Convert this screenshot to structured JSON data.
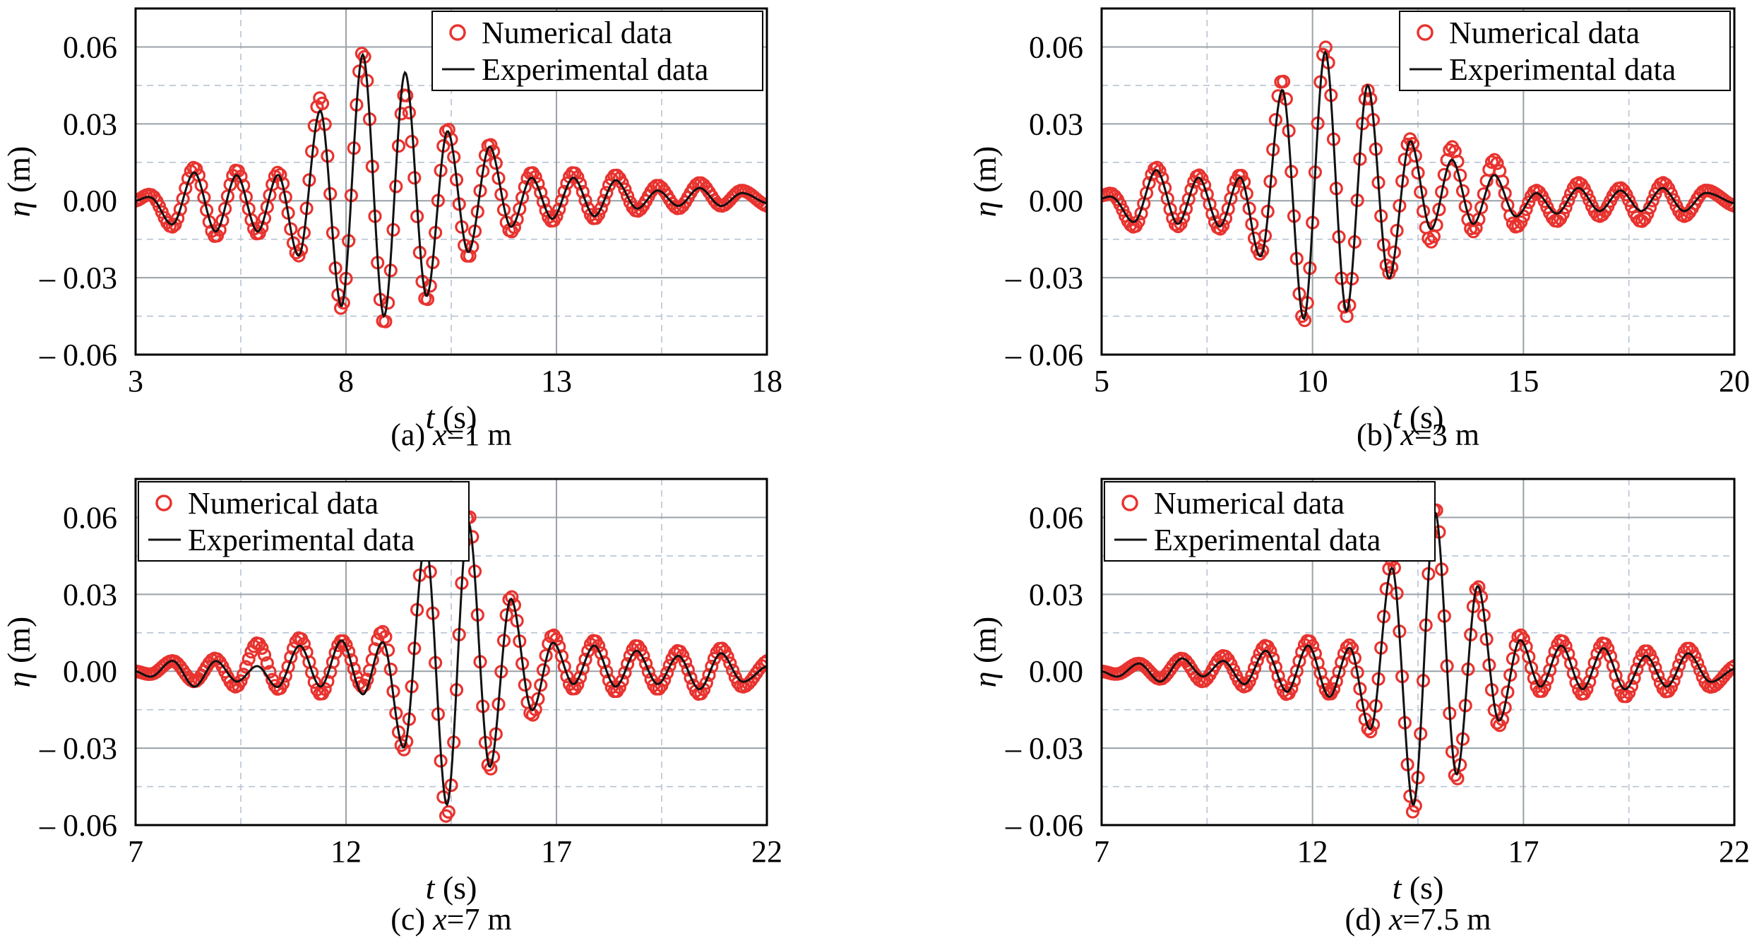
{
  "colors": {
    "numerical": "#e8332f",
    "experimental": "#111111",
    "grid_major": "#9aa2a8",
    "grid_minor": "#b7c3d3"
  },
  "chart_data": [
    {
      "type": "line",
      "caption_prefix": "(a) ",
      "caption_var": "x",
      "caption_value": "=1 m",
      "xlabel_var": "t",
      "xlabel_unit": " (s)",
      "ylabel_var": "η",
      "ylabel_unit": " (m)",
      "xlim": [
        3,
        18
      ],
      "ylim": [
        -0.06,
        0.075
      ],
      "x_ticks": [
        "3",
        "8",
        "13",
        "18"
      ],
      "x_tick_values": [
        3,
        8,
        13,
        18
      ],
      "y_ticks": [
        "0.06",
        "0.03",
        "0.00",
        "– 0.03",
        "– 0.06"
      ],
      "y_tick_values": [
        0.06,
        0.03,
        0.0,
        -0.03,
        -0.06
      ],
      "grid": true,
      "legend_position": "top-right",
      "series": [
        {
          "name": "Numerical data",
          "style": "markers",
          "t": [
            3.0,
            3.4,
            3.9,
            4.4,
            4.9,
            5.4,
            5.9,
            6.4,
            6.9,
            7.4,
            7.9,
            8.4,
            8.9,
            9.4,
            9.9,
            10.4,
            10.9,
            11.4,
            11.9,
            12.4,
            12.9,
            13.4,
            13.9,
            14.4,
            14.9,
            15.4,
            15.9,
            16.4,
            16.9,
            17.4,
            18.0
          ],
          "eta": [
            0.0,
            0.002,
            -0.01,
            0.013,
            -0.014,
            0.012,
            -0.013,
            0.011,
            -0.021,
            0.04,
            -0.042,
            0.058,
            -0.048,
            0.042,
            -0.039,
            0.028,
            -0.022,
            0.022,
            -0.012,
            0.011,
            -0.008,
            0.011,
            -0.007,
            0.01,
            -0.004,
            0.006,
            -0.003,
            0.007,
            -0.002,
            0.004,
            -0.002
          ]
        },
        {
          "name": "Experimental data",
          "style": "line",
          "t": [
            3.0,
            3.4,
            3.9,
            4.4,
            4.9,
            5.4,
            5.9,
            6.4,
            6.9,
            7.4,
            7.9,
            8.4,
            8.9,
            9.4,
            9.9,
            10.4,
            10.9,
            11.4,
            11.9,
            12.4,
            12.9,
            13.4,
            13.9,
            14.4,
            14.9,
            15.4,
            15.9,
            16.4,
            16.9,
            17.4,
            18.0
          ],
          "eta": [
            0.0,
            0.001,
            -0.009,
            0.011,
            -0.012,
            0.01,
            -0.012,
            0.01,
            -0.021,
            0.035,
            -0.041,
            0.057,
            -0.045,
            0.05,
            -0.037,
            0.027,
            -0.02,
            0.021,
            -0.01,
            0.009,
            -0.007,
            0.009,
            -0.006,
            0.008,
            -0.003,
            0.004,
            -0.002,
            0.005,
            -0.002,
            0.003,
            -0.001
          ]
        }
      ]
    },
    {
      "type": "line",
      "caption_prefix": "(b) ",
      "caption_var": "x",
      "caption_value": "=3 m",
      "xlabel_var": "t",
      "xlabel_unit": " (s)",
      "ylabel_var": "η",
      "ylabel_unit": " (m)",
      "xlim": [
        5,
        20
      ],
      "ylim": [
        -0.06,
        0.075
      ],
      "x_ticks": [
        "5",
        "10",
        "15",
        "20"
      ],
      "x_tick_values": [
        5,
        10,
        15,
        20
      ],
      "y_ticks": [
        "0.06",
        "0.03",
        "0.00",
        "– 0.03",
        "– 0.06"
      ],
      "y_tick_values": [
        0.06,
        0.03,
        0.0,
        -0.03,
        -0.06
      ],
      "grid": true,
      "legend_position": "top-right",
      "series": [
        {
          "name": "Numerical data",
          "style": "markers",
          "t": [
            5.0,
            5.3,
            5.8,
            6.3,
            6.8,
            7.3,
            7.8,
            8.3,
            8.8,
            9.3,
            9.8,
            10.3,
            10.8,
            11.3,
            11.8,
            12.3,
            12.8,
            13.3,
            13.8,
            14.3,
            14.8,
            15.3,
            15.8,
            16.3,
            16.8,
            17.3,
            17.8,
            18.3,
            18.8,
            19.3,
            20.0
          ],
          "eta": [
            0.002,
            0.002,
            -0.01,
            0.013,
            -0.01,
            0.01,
            -0.011,
            0.01,
            -0.02,
            0.047,
            -0.047,
            0.06,
            -0.045,
            0.043,
            -0.028,
            0.024,
            -0.016,
            0.021,
            -0.012,
            0.016,
            -0.01,
            0.004,
            -0.008,
            0.007,
            -0.006,
            0.005,
            -0.008,
            0.007,
            -0.006,
            0.004,
            -0.002
          ]
        },
        {
          "name": "Experimental data",
          "style": "line",
          "t": [
            5.0,
            5.3,
            5.8,
            6.3,
            6.8,
            7.3,
            7.8,
            8.3,
            8.8,
            9.3,
            9.8,
            10.3,
            10.8,
            11.3,
            11.8,
            12.3,
            12.8,
            13.3,
            13.8,
            14.3,
            14.8,
            15.3,
            15.8,
            16.3,
            16.8,
            17.3,
            17.8,
            18.3,
            18.8,
            19.3,
            20.0
          ],
          "eta": [
            0.001,
            0.001,
            -0.008,
            0.012,
            -0.009,
            0.009,
            -0.01,
            0.009,
            -0.021,
            0.043,
            -0.046,
            0.058,
            -0.043,
            0.045,
            -0.03,
            0.023,
            -0.011,
            0.016,
            -0.009,
            0.01,
            -0.006,
            0.003,
            -0.005,
            0.005,
            -0.004,
            0.004,
            -0.004,
            0.005,
            -0.004,
            0.003,
            -0.001
          ]
        }
      ]
    },
    {
      "type": "line",
      "caption_prefix": "(c) ",
      "caption_var": "x",
      "caption_value": "=7 m",
      "xlabel_var": "t",
      "xlabel_unit": " (s)",
      "ylabel_var": "η",
      "ylabel_unit": " (m)",
      "xlim": [
        7,
        22
      ],
      "ylim": [
        -0.06,
        0.075
      ],
      "x_ticks": [
        "7",
        "12",
        "17",
        "22"
      ],
      "x_tick_values": [
        7,
        12,
        17,
        22
      ],
      "y_ticks": [
        "0.06",
        "0.03",
        "0.00",
        "– 0.03",
        "– 0.06"
      ],
      "y_tick_values": [
        0.06,
        0.03,
        0.0,
        -0.03,
        -0.06
      ],
      "grid": true,
      "legend_position": "top-left",
      "series": [
        {
          "name": "Numerical data",
          "style": "markers",
          "t": [
            7.0,
            7.4,
            7.9,
            8.4,
            8.9,
            9.4,
            9.9,
            10.4,
            10.9,
            11.4,
            11.9,
            12.4,
            12.9,
            13.4,
            13.9,
            14.4,
            14.9,
            15.4,
            15.9,
            16.4,
            16.9,
            17.4,
            17.9,
            18.4,
            18.9,
            19.4,
            19.9,
            20.4,
            20.9,
            21.4,
            22.0
          ],
          "eta": [
            0.0,
            -0.001,
            0.004,
            -0.004,
            0.005,
            -0.006,
            0.011,
            -0.007,
            0.013,
            -0.009,
            0.012,
            -0.006,
            0.015,
            -0.03,
            0.052,
            -0.057,
            0.061,
            -0.038,
            0.029,
            -0.017,
            0.014,
            -0.007,
            0.012,
            -0.008,
            0.01,
            -0.007,
            0.008,
            -0.009,
            0.009,
            -0.006,
            0.004
          ]
        },
        {
          "name": "Experimental data",
          "style": "line",
          "t": [
            7.0,
            7.4,
            7.9,
            8.4,
            8.9,
            9.4,
            9.9,
            10.4,
            10.9,
            11.4,
            11.9,
            12.4,
            12.9,
            13.4,
            13.9,
            14.4,
            14.9,
            15.4,
            15.9,
            16.4,
            16.9,
            17.4,
            17.9,
            18.4,
            18.9,
            19.4,
            19.9,
            20.4,
            20.9,
            21.4,
            22.0
          ],
          "eta": [
            0.0,
            -0.002,
            0.004,
            -0.006,
            0.004,
            -0.004,
            0.002,
            -0.006,
            0.01,
            -0.006,
            0.012,
            -0.009,
            0.011,
            -0.029,
            0.05,
            -0.052,
            0.058,
            -0.037,
            0.028,
            -0.015,
            0.011,
            -0.005,
            0.01,
            -0.006,
            0.008,
            -0.005,
            0.006,
            -0.007,
            0.007,
            -0.004,
            0.002
          ]
        }
      ]
    },
    {
      "type": "line",
      "caption_prefix": "(d) ",
      "caption_var": "x",
      "caption_value": "=7.5 m",
      "xlabel_var": "t",
      "xlabel_unit": " (s)",
      "ylabel_var": "η",
      "ylabel_unit": " (m)",
      "xlim": [
        7,
        22
      ],
      "ylim": [
        -0.06,
        0.075
      ],
      "x_ticks": [
        "7",
        "12",
        "17",
        "22"
      ],
      "x_tick_values": [
        7,
        12,
        17,
        22
      ],
      "y_ticks": [
        "0.06",
        "0.03",
        "0.00",
        "– 0.03",
        "– 0.06"
      ],
      "y_tick_values": [
        0.06,
        0.03,
        0.0,
        -0.03,
        -0.06
      ],
      "grid": true,
      "legend_position": "top-left",
      "series": [
        {
          "name": "Numerical data",
          "style": "markers",
          "t": [
            7.0,
            7.4,
            7.9,
            8.4,
            8.9,
            9.4,
            9.9,
            10.4,
            10.9,
            11.4,
            11.9,
            12.4,
            12.9,
            13.4,
            13.9,
            14.4,
            14.9,
            15.4,
            15.9,
            16.4,
            16.9,
            17.4,
            17.9,
            18.4,
            18.9,
            19.4,
            19.9,
            20.4,
            20.9,
            21.4,
            22.0
          ],
          "eta": [
            0.0,
            -0.001,
            0.003,
            -0.003,
            0.005,
            -0.004,
            0.006,
            -0.006,
            0.01,
            -0.009,
            0.012,
            -0.009,
            0.01,
            -0.023,
            0.043,
            -0.055,
            0.064,
            -0.042,
            0.033,
            -0.021,
            0.014,
            -0.008,
            0.012,
            -0.009,
            0.011,
            -0.01,
            0.008,
            -0.008,
            0.009,
            -0.006,
            0.002
          ]
        },
        {
          "name": "Experimental data",
          "style": "line",
          "t": [
            7.0,
            7.4,
            7.9,
            8.4,
            8.9,
            9.4,
            9.9,
            10.4,
            10.9,
            11.4,
            11.9,
            12.4,
            12.9,
            13.4,
            13.9,
            14.4,
            14.9,
            15.4,
            15.9,
            16.4,
            16.9,
            17.4,
            17.9,
            18.4,
            18.9,
            19.4,
            19.9,
            20.4,
            20.9,
            21.4,
            22.0
          ],
          "eta": [
            0.0,
            -0.002,
            0.003,
            -0.004,
            0.005,
            -0.002,
            0.004,
            -0.005,
            0.008,
            -0.008,
            0.01,
            -0.01,
            0.009,
            -0.022,
            0.04,
            -0.052,
            0.062,
            -0.04,
            0.033,
            -0.019,
            0.012,
            -0.006,
            0.01,
            -0.007,
            0.009,
            -0.007,
            0.006,
            -0.006,
            0.007,
            -0.004,
            0.001
          ]
        }
      ]
    }
  ]
}
